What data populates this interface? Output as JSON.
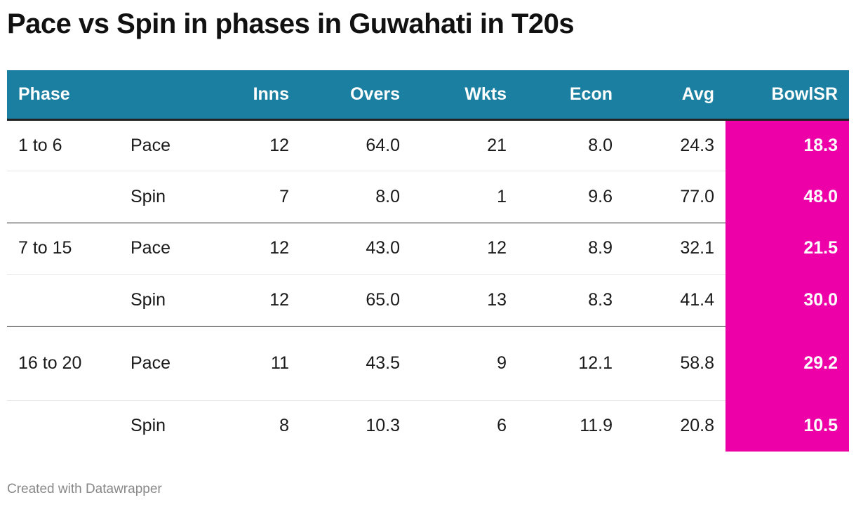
{
  "title": "Pace vs Spin in phases in Guwahati in T20s",
  "footer": "Created with Datawrapper",
  "colors": {
    "header_bg": "#1a7fa0",
    "highlight": "#ee00a8"
  },
  "chart_data": {
    "type": "table",
    "columns": [
      "Phase",
      "",
      "Inns",
      "Overs",
      "Wkts",
      "Econ",
      "Avg",
      "BowlSR"
    ],
    "rows": [
      [
        "1 to 6",
        "Pace",
        "12",
        "64.0",
        "21",
        "8.0",
        "24.3",
        "18.3"
      ],
      [
        "",
        "Spin",
        "7",
        "8.0",
        "1",
        "9.6",
        "77.0",
        "48.0"
      ],
      [
        "7 to 15",
        "Pace",
        "12",
        "43.0",
        "12",
        "8.9",
        "32.1",
        "21.5"
      ],
      [
        "",
        "Spin",
        "12",
        "65.0",
        "13",
        "8.3",
        "41.4",
        "30.0"
      ],
      [
        "16 to 20",
        "Pace",
        "11",
        "43.5",
        "9",
        "12.1",
        "58.8",
        "29.2"
      ],
      [
        "",
        "Spin",
        "8",
        "10.3",
        "6",
        "11.9",
        "20.8",
        "10.5"
      ]
    ],
    "highlighted_column": "BowlSR"
  }
}
